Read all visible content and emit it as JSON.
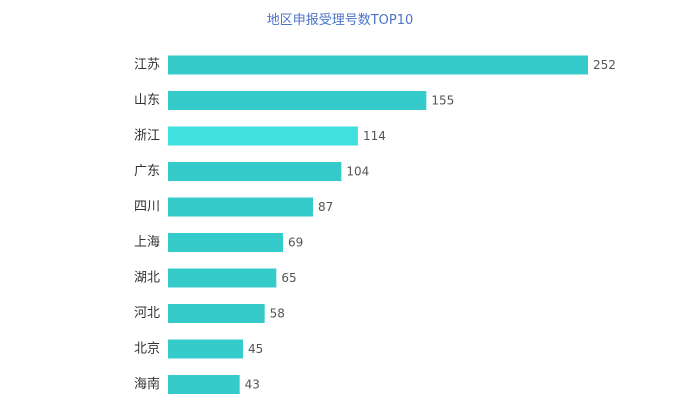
{
  "chart_data": {
    "type": "bar",
    "orientation": "horizontal",
    "title": "地区申报受理号数TOP10",
    "categories": [
      "江苏",
      "山东",
      "浙江",
      "广东",
      "四川",
      "上海",
      "湖北",
      "河北",
      "北京",
      "海南"
    ],
    "values": [
      252,
      155,
      114,
      104,
      87,
      69,
      65,
      58,
      45,
      43
    ],
    "xlim": [
      0,
      252
    ],
    "grid": false,
    "legend": "none",
    "data_labels": true
  },
  "colors": {
    "bar": "#36cbcb",
    "bar_highlight": "#3ee0e0",
    "title": "#4a74c9"
  },
  "highlight_index": 2
}
